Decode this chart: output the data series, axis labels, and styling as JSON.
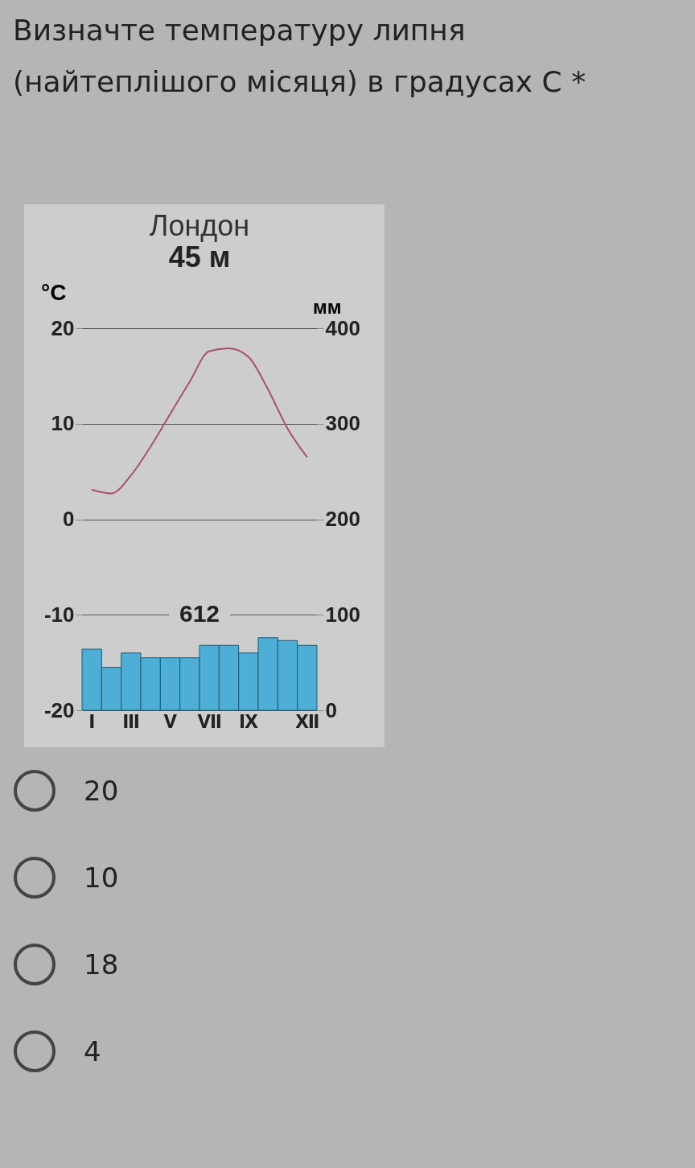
{
  "chart_data": {
    "type": "bar",
    "title": "Визначте температуру липня (найтеплішого місяця) в градусах С *",
    "subtitle": "Лондон",
    "categories": [
      "I",
      null,
      "III",
      null,
      "V",
      null,
      "VII",
      null,
      "IX",
      null,
      null,
      "XII"
    ],
    "series": [
      {
        "axis": "y2",
        "color": "#4eaed6",
        "values": [
          64,
          45,
          60,
          55,
          55,
          55,
          68,
          68,
          60,
          76,
          73,
          68
        ]
      },
      {
        "type": "line",
        "color": "#a8506f",
        "values": [
          3.1,
          2.7,
          4.6,
          7.6,
          11,
          14.4,
          17.6,
          17.9,
          17,
          13.6,
          9.5,
          6.5
        ]
      }
    ],
    "ylabel": "°C",
    "y2label": "мм",
    "ylim": [
      -20,
      20
    ],
    "yticks": [
      -20,
      -10,
      0,
      10,
      20
    ],
    "y2lim": [
      0,
      400
    ],
    "y2ticks": [
      0,
      100,
      200,
      300,
      400
    ],
    "grid": "y",
    "annotations": [
      "45 м",
      "612",
      "20",
      "10",
      "18",
      "4"
    ]
  }
}
